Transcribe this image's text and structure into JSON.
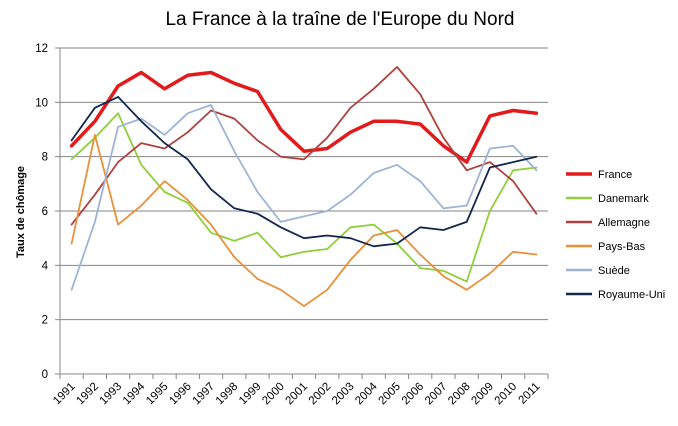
{
  "chart_data": {
    "type": "line",
    "title": "La France à la traîne de l'Europe du Nord",
    "xlabel": "",
    "ylabel": "Taux de chômage",
    "x": [
      "1991",
      "1992",
      "1993",
      "1994",
      "1995",
      "1996",
      "1997",
      "1998",
      "1999",
      "2000",
      "2001",
      "2002",
      "2003",
      "2004",
      "2005",
      "2006",
      "2007",
      "2008",
      "2009",
      "2010",
      "2011"
    ],
    "ylim": [
      0,
      12
    ],
    "yticks": [
      "0",
      "2",
      "4",
      "6",
      "8",
      "10",
      "12"
    ],
    "grid": "horizontal",
    "legend_position": "right",
    "series": [
      {
        "name": "France",
        "color": "#e31a1c",
        "width": 3.5,
        "values": [
          8.4,
          9.3,
          10.6,
          11.1,
          10.5,
          11.0,
          11.1,
          10.7,
          10.4,
          9.0,
          8.2,
          8.3,
          8.9,
          9.3,
          9.3,
          9.2,
          8.4,
          7.8,
          9.5,
          9.7,
          9.6
        ]
      },
      {
        "name": "Danemark",
        "color": "#8fcf3c",
        "width": 1.8,
        "values": [
          7.9,
          8.7,
          9.6,
          7.7,
          6.7,
          6.3,
          5.2,
          4.9,
          5.2,
          4.3,
          4.5,
          4.6,
          5.4,
          5.5,
          4.8,
          3.9,
          3.8,
          3.4,
          6.0,
          7.5,
          7.6
        ]
      },
      {
        "name": "Allemagne",
        "color": "#b0413e",
        "width": 1.8,
        "values": [
          5.5,
          6.6,
          7.8,
          8.5,
          8.3,
          8.9,
          9.7,
          9.4,
          8.6,
          8.0,
          7.9,
          8.7,
          9.8,
          10.5,
          11.3,
          10.3,
          8.7,
          7.5,
          7.8,
          7.1,
          5.9
        ]
      },
      {
        "name": "Pays-Bas",
        "color": "#e8913a",
        "width": 1.8,
        "values": [
          4.8,
          8.8,
          5.5,
          6.2,
          7.1,
          6.4,
          5.5,
          4.3,
          3.5,
          3.1,
          2.5,
          3.1,
          4.2,
          5.1,
          5.3,
          4.4,
          3.6,
          3.1,
          3.7,
          4.5,
          4.4
        ]
      },
      {
        "name": "Suède",
        "color": "#9db4d6",
        "width": 1.8,
        "values": [
          3.1,
          5.6,
          9.1,
          9.4,
          8.8,
          9.6,
          9.9,
          8.2,
          6.7,
          5.6,
          5.8,
          6.0,
          6.6,
          7.4,
          7.7,
          7.1,
          6.1,
          6.2,
          8.3,
          8.4,
          7.5
        ]
      },
      {
        "name": "Royaume-Uni",
        "color": "#14274e",
        "width": 1.8,
        "values": [
          8.6,
          9.8,
          10.2,
          9.3,
          8.5,
          7.9,
          6.8,
          6.1,
          5.9,
          5.4,
          5.0,
          5.1,
          5.0,
          4.7,
          4.8,
          5.4,
          5.3,
          5.6,
          7.6,
          7.8,
          8.0
        ]
      }
    ]
  }
}
